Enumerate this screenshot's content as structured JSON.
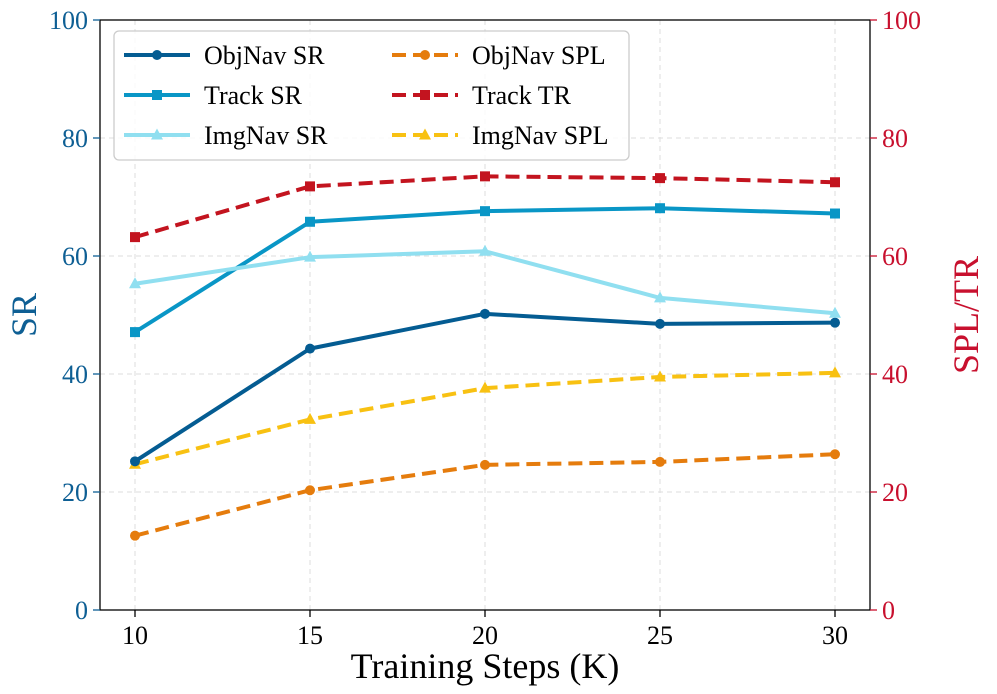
{
  "chart_data": {
    "type": "line",
    "xlabel": "Training Steps (K)",
    "ylabel_left": "SR",
    "ylabel_right": "SPL/TR",
    "x": [
      10,
      15,
      20,
      25,
      30
    ],
    "xticks": [
      "10",
      "15",
      "20",
      "25",
      "30"
    ],
    "xlim": [
      9,
      31
    ],
    "ylim_left": [
      0,
      100
    ],
    "ylim_right": [
      0,
      100
    ],
    "yticks_left": [
      "0",
      "20",
      "40",
      "60",
      "80",
      "100"
    ],
    "yticks_right": [
      "0",
      "20",
      "40",
      "60",
      "80",
      "100"
    ],
    "grid": true,
    "legend_position": "top-left",
    "colors": {
      "left_axis": "#0e5f94",
      "right_axis": "#c8102e",
      "grid": "#dddddd"
    },
    "series": [
      {
        "name": "ObjNav SR",
        "axis": "left",
        "style": "solid",
        "marker": "circle",
        "color": "#045c92",
        "values": [
          25.2,
          44.3,
          50.2,
          48.5,
          48.7
        ]
      },
      {
        "name": "Track SR",
        "axis": "left",
        "style": "solid",
        "marker": "square",
        "color": "#0996c6",
        "values": [
          47.1,
          65.8,
          67.6,
          68.1,
          67.2
        ]
      },
      {
        "name": "ImgNav SR",
        "axis": "left",
        "style": "solid",
        "marker": "triangle",
        "color": "#90dff0",
        "values": [
          55.3,
          59.8,
          60.8,
          52.9,
          50.3
        ]
      },
      {
        "name": "ObjNav SPL",
        "axis": "right",
        "style": "dashed",
        "marker": "circle",
        "color": "#e57c0d",
        "values": [
          12.6,
          20.3,
          24.6,
          25.1,
          26.4
        ]
      },
      {
        "name": "Track TR",
        "axis": "right",
        "style": "dashed",
        "marker": "square",
        "color": "#c3141f",
        "values": [
          63.2,
          71.8,
          73.5,
          73.2,
          72.5
        ]
      },
      {
        "name": "ImgNav SPL",
        "axis": "right",
        "style": "dashed",
        "marker": "triangle",
        "color": "#f8c112",
        "values": [
          24.7,
          32.3,
          37.6,
          39.5,
          40.2
        ]
      }
    ]
  }
}
